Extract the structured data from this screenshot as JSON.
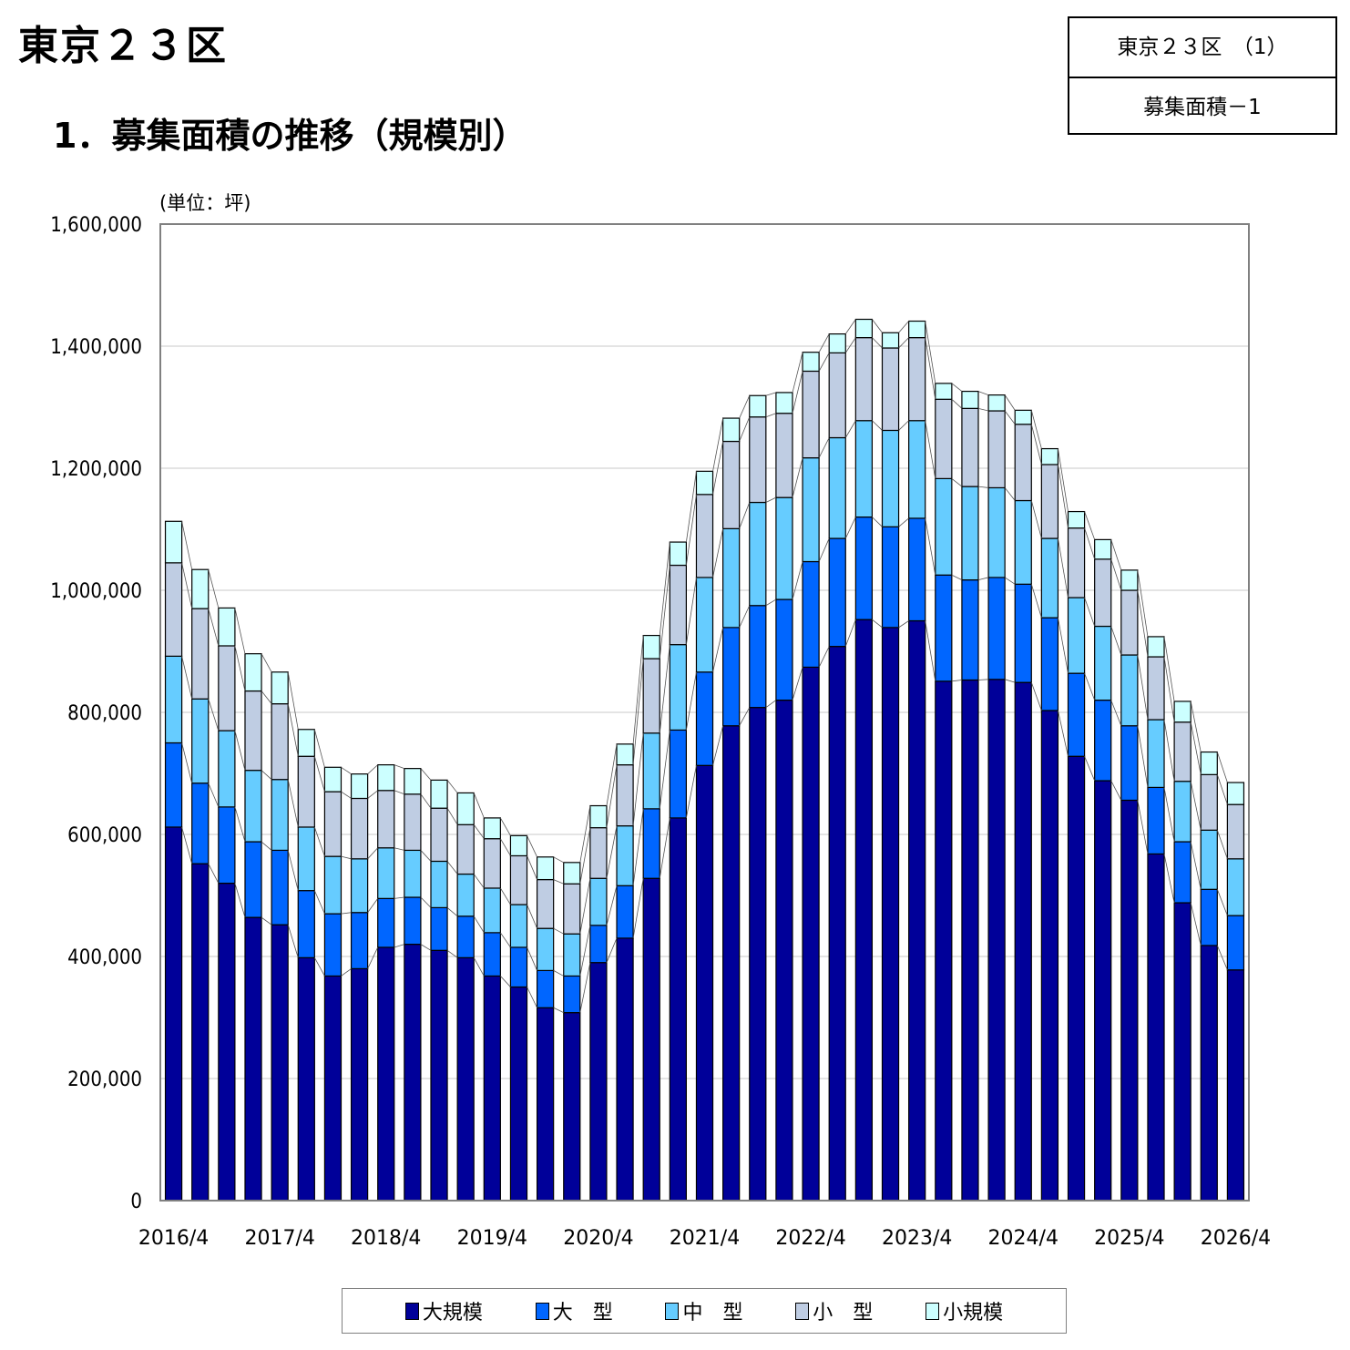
{
  "header": {
    "region_title": "東京２３区",
    "section_title": "1．募集面積の推移（規模別）",
    "ref_top": "東京２３区　（1）",
    "ref_bottom": "募集面積－1"
  },
  "chart_data": {
    "type": "bar",
    "stacked": true,
    "unit_label": "(単位：坪)",
    "ylim": [
      0,
      1600000
    ],
    "y_ticks": [
      "0",
      "200,000",
      "400,000",
      "600,000",
      "800,000",
      "1,000,000",
      "1,200,000",
      "1,400,000",
      "1,600,000"
    ],
    "y_tick_values": [
      0,
      200000,
      400000,
      600000,
      800000,
      1000000,
      1200000,
      1400000,
      1600000
    ],
    "grid": true,
    "legend_position": "bottom",
    "x_tick_labels": [
      "2016/4",
      "2017/4",
      "2018/4",
      "2019/4",
      "2020/4",
      "2021/4",
      "2022/4",
      "2023/4",
      "2024/4",
      "2025/4",
      "2026/4"
    ],
    "series": [
      {
        "name": "大規模",
        "color": "#000099",
        "values": [
          612000,
          552000,
          520000,
          464000,
          452000,
          398000,
          368000,
          380000,
          415000,
          420000,
          410000,
          398000,
          368000,
          350000,
          316000,
          308000,
          390000,
          430000,
          528000,
          627000,
          713000,
          778000,
          808000,
          820000,
          874000,
          908000,
          952000,
          939000,
          950000,
          851000,
          853000,
          854000,
          849000,
          803000,
          728000,
          688000,
          656000,
          568000,
          488000,
          418000,
          378000
        ]
      },
      {
        "name": "大　型",
        "color": "#0066ff",
        "values": [
          138000,
          132000,
          125000,
          124000,
          122000,
          110000,
          102000,
          92000,
          80000,
          77000,
          70000,
          68000,
          71000,
          65000,
          61000,
          60000,
          61000,
          86000,
          114000,
          144000,
          153000,
          161000,
          167000,
          165000,
          173000,
          177000,
          168000,
          165000,
          168000,
          174000,
          164000,
          167000,
          161000,
          152000,
          136000,
          132000,
          122000,
          109000,
          100000,
          92000,
          89000
        ]
      },
      {
        "name": "中　型",
        "color": "#66ccff",
        "values": [
          142000,
          138000,
          125000,
          117000,
          116000,
          104000,
          94000,
          88000,
          83000,
          77000,
          76000,
          69000,
          73000,
          70000,
          69000,
          69000,
          77000,
          98000,
          124000,
          140000,
          155000,
          162000,
          169000,
          167000,
          170000,
          165000,
          158000,
          158000,
          160000,
          158000,
          153000,
          147000,
          137000,
          130000,
          124000,
          121000,
          116000,
          111000,
          99000,
          97000,
          93000
        ]
      },
      {
        "name": "小　型",
        "color": "#bfcde3",
        "values": [
          153000,
          148000,
          139000,
          130000,
          124000,
          116000,
          106000,
          99000,
          94000,
          92000,
          87000,
          81000,
          81000,
          80000,
          80000,
          82000,
          83000,
          100000,
          122000,
          130000,
          136000,
          143000,
          140000,
          138000,
          142000,
          139000,
          136000,
          135000,
          136000,
          130000,
          128000,
          126000,
          125000,
          121000,
          114000,
          110000,
          106000,
          103000,
          97000,
          91000,
          89000
        ]
      },
      {
        "name": "小規模",
        "color": "#ccffff",
        "values": [
          68000,
          64000,
          62000,
          61000,
          52000,
          44000,
          40000,
          40000,
          42000,
          42000,
          46000,
          52000,
          34000,
          33000,
          37000,
          35000,
          36000,
          34000,
          38000,
          38000,
          38000,
          38000,
          35000,
          34000,
          31000,
          31000,
          30000,
          25000,
          27000,
          26000,
          28000,
          26000,
          23000,
          26000,
          27000,
          32000,
          33000,
          33000,
          34000,
          37000,
          36000
        ]
      }
    ]
  }
}
